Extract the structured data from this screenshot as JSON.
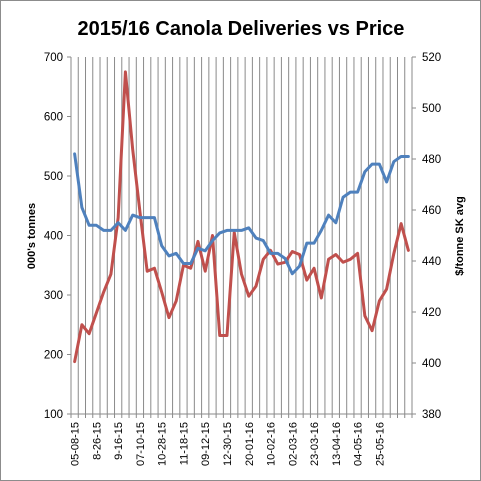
{
  "chart_data": {
    "type": "line",
    "title": "2015/16  Canola Deliveries vs Price",
    "ylabel_left": "000's tonnes",
    "ylabel_right": "$/tonne SK avg",
    "xlabel": "",
    "y_left_lim": [
      100,
      700
    ],
    "y_left_ticks": [
      100,
      200,
      300,
      400,
      500,
      600,
      700
    ],
    "y_right_lim": [
      380,
      520
    ],
    "y_right_ticks": [
      380,
      400,
      420,
      440,
      460,
      480,
      500,
      520
    ],
    "grid": "vertical",
    "legend": "none",
    "x_tick_labels": [
      "05-08-15",
      "8-26-15",
      "9-16-15",
      "07-10-15",
      "10-28-15",
      "11-18-15",
      "09-12-15",
      "12-30-15",
      "20-01-16",
      "10-02-16",
      "02-03-16",
      "23-03-16",
      "13-04-16",
      "04-05-16",
      "25-05-16"
    ],
    "series": [
      {
        "axis": "left",
        "color": "#c0504d",
        "values": [
          188,
          250,
          235,
          270,
          305,
          335,
          430,
          675,
          545,
          440,
          340,
          345,
          305,
          262,
          290,
          350,
          345,
          390,
          340,
          400,
          232,
          232,
          405,
          335,
          298,
          315,
          360,
          375,
          352,
          355,
          373,
          368,
          325,
          345,
          295,
          360,
          368,
          355,
          360,
          370,
          265,
          240,
          290,
          310,
          370,
          420,
          375
        ]
      },
      {
        "axis": "right",
        "color": "#4f81bd",
        "values": [
          482,
          461,
          454,
          454,
          452,
          452,
          455,
          452,
          458,
          457,
          457,
          457,
          446,
          442,
          443,
          439,
          439,
          445,
          444,
          448,
          451,
          452,
          452,
          452,
          453,
          449,
          448,
          443,
          443,
          441,
          435,
          438,
          447,
          447,
          452,
          458,
          455,
          465,
          467,
          467,
          475,
          478,
          478,
          471,
          479,
          481,
          481
        ]
      }
    ]
  }
}
